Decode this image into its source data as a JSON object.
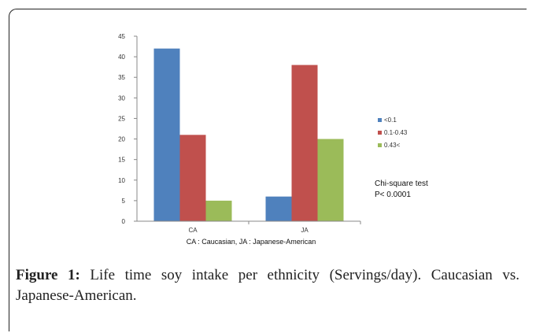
{
  "chart_data": {
    "type": "bar",
    "categories": [
      "CA",
      "JA"
    ],
    "series": [
      {
        "name": "<0.1",
        "values": [
          42,
          6
        ],
        "color": "#4F81BD"
      },
      {
        "name": "0.1-0.43",
        "values": [
          21,
          38
        ],
        "color": "#C0504D"
      },
      {
        "name": "0.43<",
        "values": [
          5,
          20
        ],
        "color": "#9BBB59"
      }
    ],
    "ylim": [
      0,
      45
    ],
    "yticks": [
      0,
      5,
      10,
      15,
      20,
      25,
      30,
      35,
      40,
      45
    ],
    "xlabel": "CA : Caucasian, JA : Japanese-American",
    "legend_position": "right",
    "annotation": [
      "Chi-square test",
      "P< 0.0001"
    ]
  },
  "caption": {
    "label": "Figure 1:",
    "text": " Life time soy intake per ethnicity (Servings/day). Caucasian vs. Japanese-American."
  }
}
